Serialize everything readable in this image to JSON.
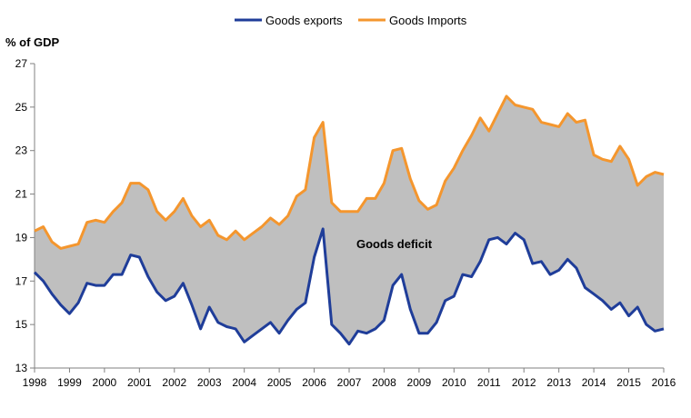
{
  "chart_data": {
    "type": "line",
    "title": "",
    "ylabel": "% of GDP",
    "xlabel": "",
    "ylim": [
      13,
      27
    ],
    "yticks": [
      "13",
      "15",
      "17",
      "19",
      "21",
      "23",
      "25",
      "27"
    ],
    "xticks": [
      "1998",
      "1999",
      "2000",
      "2001",
      "2002",
      "2003",
      "2004",
      "2005",
      "2006",
      "2007",
      "2008",
      "2009",
      "2010",
      "2011",
      "2012",
      "2013",
      "2014",
      "2015",
      "2016"
    ],
    "x_range": [
      1998.0,
      2016.0
    ],
    "legend_position": "top-center",
    "annotation": "Goods deficit",
    "colors": {
      "exports": "#1f3d99",
      "imports": "#f4962e",
      "fill": "#bfbfbf",
      "axis": "#808080"
    },
    "x": [
      1998.0,
      1998.25,
      1998.5,
      1998.75,
      1999.0,
      1999.25,
      1999.5,
      1999.75,
      2000.0,
      2000.25,
      2000.5,
      2000.75,
      2001.0,
      2001.25,
      2001.5,
      2001.75,
      2002.0,
      2002.25,
      2002.5,
      2002.75,
      2003.0,
      2003.25,
      2003.5,
      2003.75,
      2004.0,
      2004.25,
      2004.5,
      2004.75,
      2005.0,
      2005.25,
      2005.5,
      2005.75,
      2006.0,
      2006.25,
      2006.5,
      2006.75,
      2007.0,
      2007.25,
      2007.5,
      2007.75,
      2008.0,
      2008.25,
      2008.5,
      2008.75,
      2009.0,
      2009.25,
      2009.5,
      2009.75,
      2010.0,
      2010.25,
      2010.5,
      2010.75,
      2011.0,
      2011.25,
      2011.5,
      2011.75,
      2012.0,
      2012.25,
      2012.5,
      2012.75,
      2013.0,
      2013.25,
      2013.5,
      2013.75,
      2014.0,
      2014.25,
      2014.5,
      2014.75,
      2015.0,
      2015.25,
      2015.5,
      2015.75,
      2016.0
    ],
    "series": [
      {
        "name": "Goods exports",
        "values": [
          17.4,
          17.0,
          16.4,
          15.9,
          15.5,
          16.0,
          16.9,
          16.8,
          16.8,
          17.3,
          17.3,
          18.2,
          18.1,
          17.2,
          16.5,
          16.1,
          16.3,
          16.9,
          15.9,
          14.8,
          15.8,
          15.1,
          14.9,
          14.8,
          14.2,
          14.5,
          14.8,
          15.1,
          14.6,
          15.2,
          15.7,
          16.0,
          18.1,
          19.4,
          15.0,
          14.6,
          14.1,
          14.7,
          14.6,
          14.8,
          15.2,
          16.8,
          17.3,
          15.7,
          14.6,
          14.6,
          15.1,
          16.1,
          16.3,
          17.3,
          17.2,
          17.9,
          18.9,
          19.0,
          18.7,
          19.2,
          18.9,
          17.8,
          17.9,
          17.3,
          17.5,
          18.0,
          17.6,
          16.7,
          16.4,
          16.1,
          15.7,
          16.0,
          15.4,
          15.8,
          15.0,
          14.7,
          14.8
        ]
      },
      {
        "name": "Goods Imports",
        "values": [
          19.3,
          19.5,
          18.8,
          18.5,
          18.6,
          18.7,
          19.7,
          19.8,
          19.7,
          20.2,
          20.6,
          21.5,
          21.5,
          21.2,
          20.2,
          19.8,
          20.2,
          20.8,
          20.0,
          19.5,
          19.8,
          19.1,
          18.9,
          19.3,
          18.9,
          19.2,
          19.5,
          19.9,
          19.6,
          20.0,
          20.9,
          21.2,
          23.6,
          24.3,
          20.6,
          20.2,
          20.2,
          20.2,
          20.8,
          20.8,
          21.5,
          23.0,
          23.1,
          21.7,
          20.7,
          20.3,
          20.5,
          21.6,
          22.2,
          23.0,
          23.7,
          24.5,
          23.9,
          24.7,
          25.5,
          25.1,
          25.0,
          24.9,
          24.3,
          24.2,
          24.1,
          24.7,
          24.3,
          24.4,
          22.8,
          22.6,
          22.5,
          23.2,
          22.6,
          21.4,
          21.8,
          22.0,
          21.9
        ]
      }
    ]
  }
}
